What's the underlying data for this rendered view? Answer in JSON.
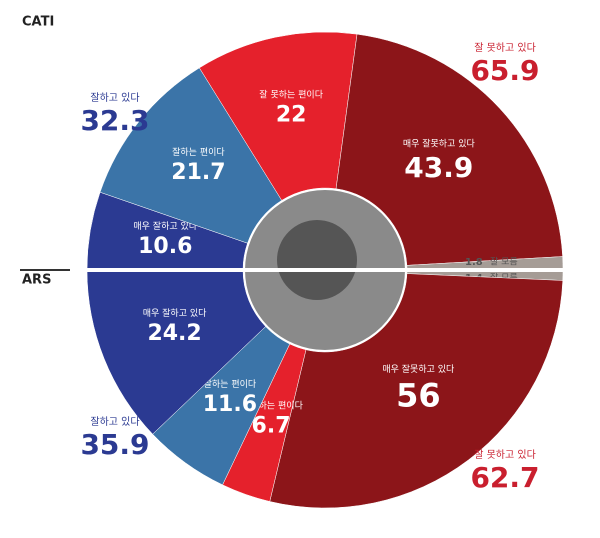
{
  "chart_data": [
    {
      "type": "half-donut",
      "label": "CATI",
      "categories": [
        "매우 잘하고 있다",
        "잘하는 편이다",
        "잘 못하는 편이다",
        "매우 잘못하고 있다",
        "잘 모름"
      ],
      "values": [
        10.6,
        21.7,
        22.0,
        43.9,
        1.8
      ],
      "colors": [
        "#2b3a92",
        "#3b74a8",
        "#e5212c",
        "#8c1519",
        "#a59c96"
      ],
      "totals": [
        {
          "name": "잘하고 있다",
          "value": 32.3,
          "color": "#2b3a92"
        },
        {
          "name": "잘 못하고 있다",
          "value": 65.9,
          "color": "#c91f2e"
        }
      ]
    },
    {
      "type": "half-donut",
      "label": "ARS",
      "categories": [
        "잘 모름",
        "매우 잘못하고 있다",
        "잘 못하는 편이다",
        "잘하는 편이다",
        "매우 잘하고 있다"
      ],
      "values": [
        1.4,
        56.0,
        6.7,
        11.6,
        24.2
      ],
      "colors": [
        "#a59c96",
        "#8c1519",
        "#e5212c",
        "#3b74a8",
        "#2b3a92"
      ],
      "totals": [
        {
          "name": "잘하고 있다",
          "value": 35.9,
          "color": "#2b3a92"
        },
        {
          "name": "잘 못하고 있다",
          "value": 62.7,
          "color": "#c91f2e"
        }
      ]
    }
  ]
}
